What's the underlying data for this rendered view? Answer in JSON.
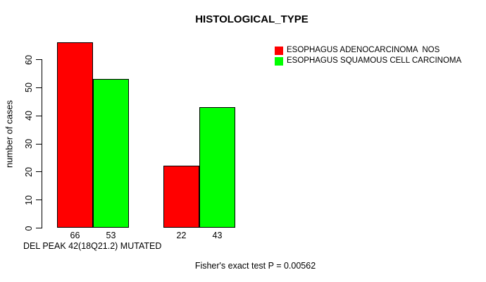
{
  "figure": {
    "background": "#FFFFFF",
    "text_color": "#000000"
  },
  "chart_data": {
    "type": "bar",
    "title": "HISTOLOGICAL_TYPE",
    "xlabel": "DEL PEAK 42(18Q21.2) MUTATED",
    "ylabel": "number of cases",
    "annotation": "Fisher's exact test P = 0.00562",
    "series": [
      {
        "name": "ESOPHAGUS ADENOCARCINOMA  NOS",
        "color": "#FF0000",
        "values": [
          66,
          22
        ]
      },
      {
        "name": "ESOPHAGUS SQUAMOUS CELL CARCINOMA",
        "color": "#00FF00",
        "values": [
          53,
          43
        ]
      }
    ],
    "bar_labels": [
      "66",
      "53",
      "22",
      "43"
    ],
    "yticks": [
      0,
      10,
      20,
      30,
      40,
      50,
      60
    ],
    "ylim": [
      0,
      60
    ],
    "grid": false,
    "legend_position": "top-right",
    "axis_color": "#000000",
    "bar_border_color": "#000000"
  }
}
